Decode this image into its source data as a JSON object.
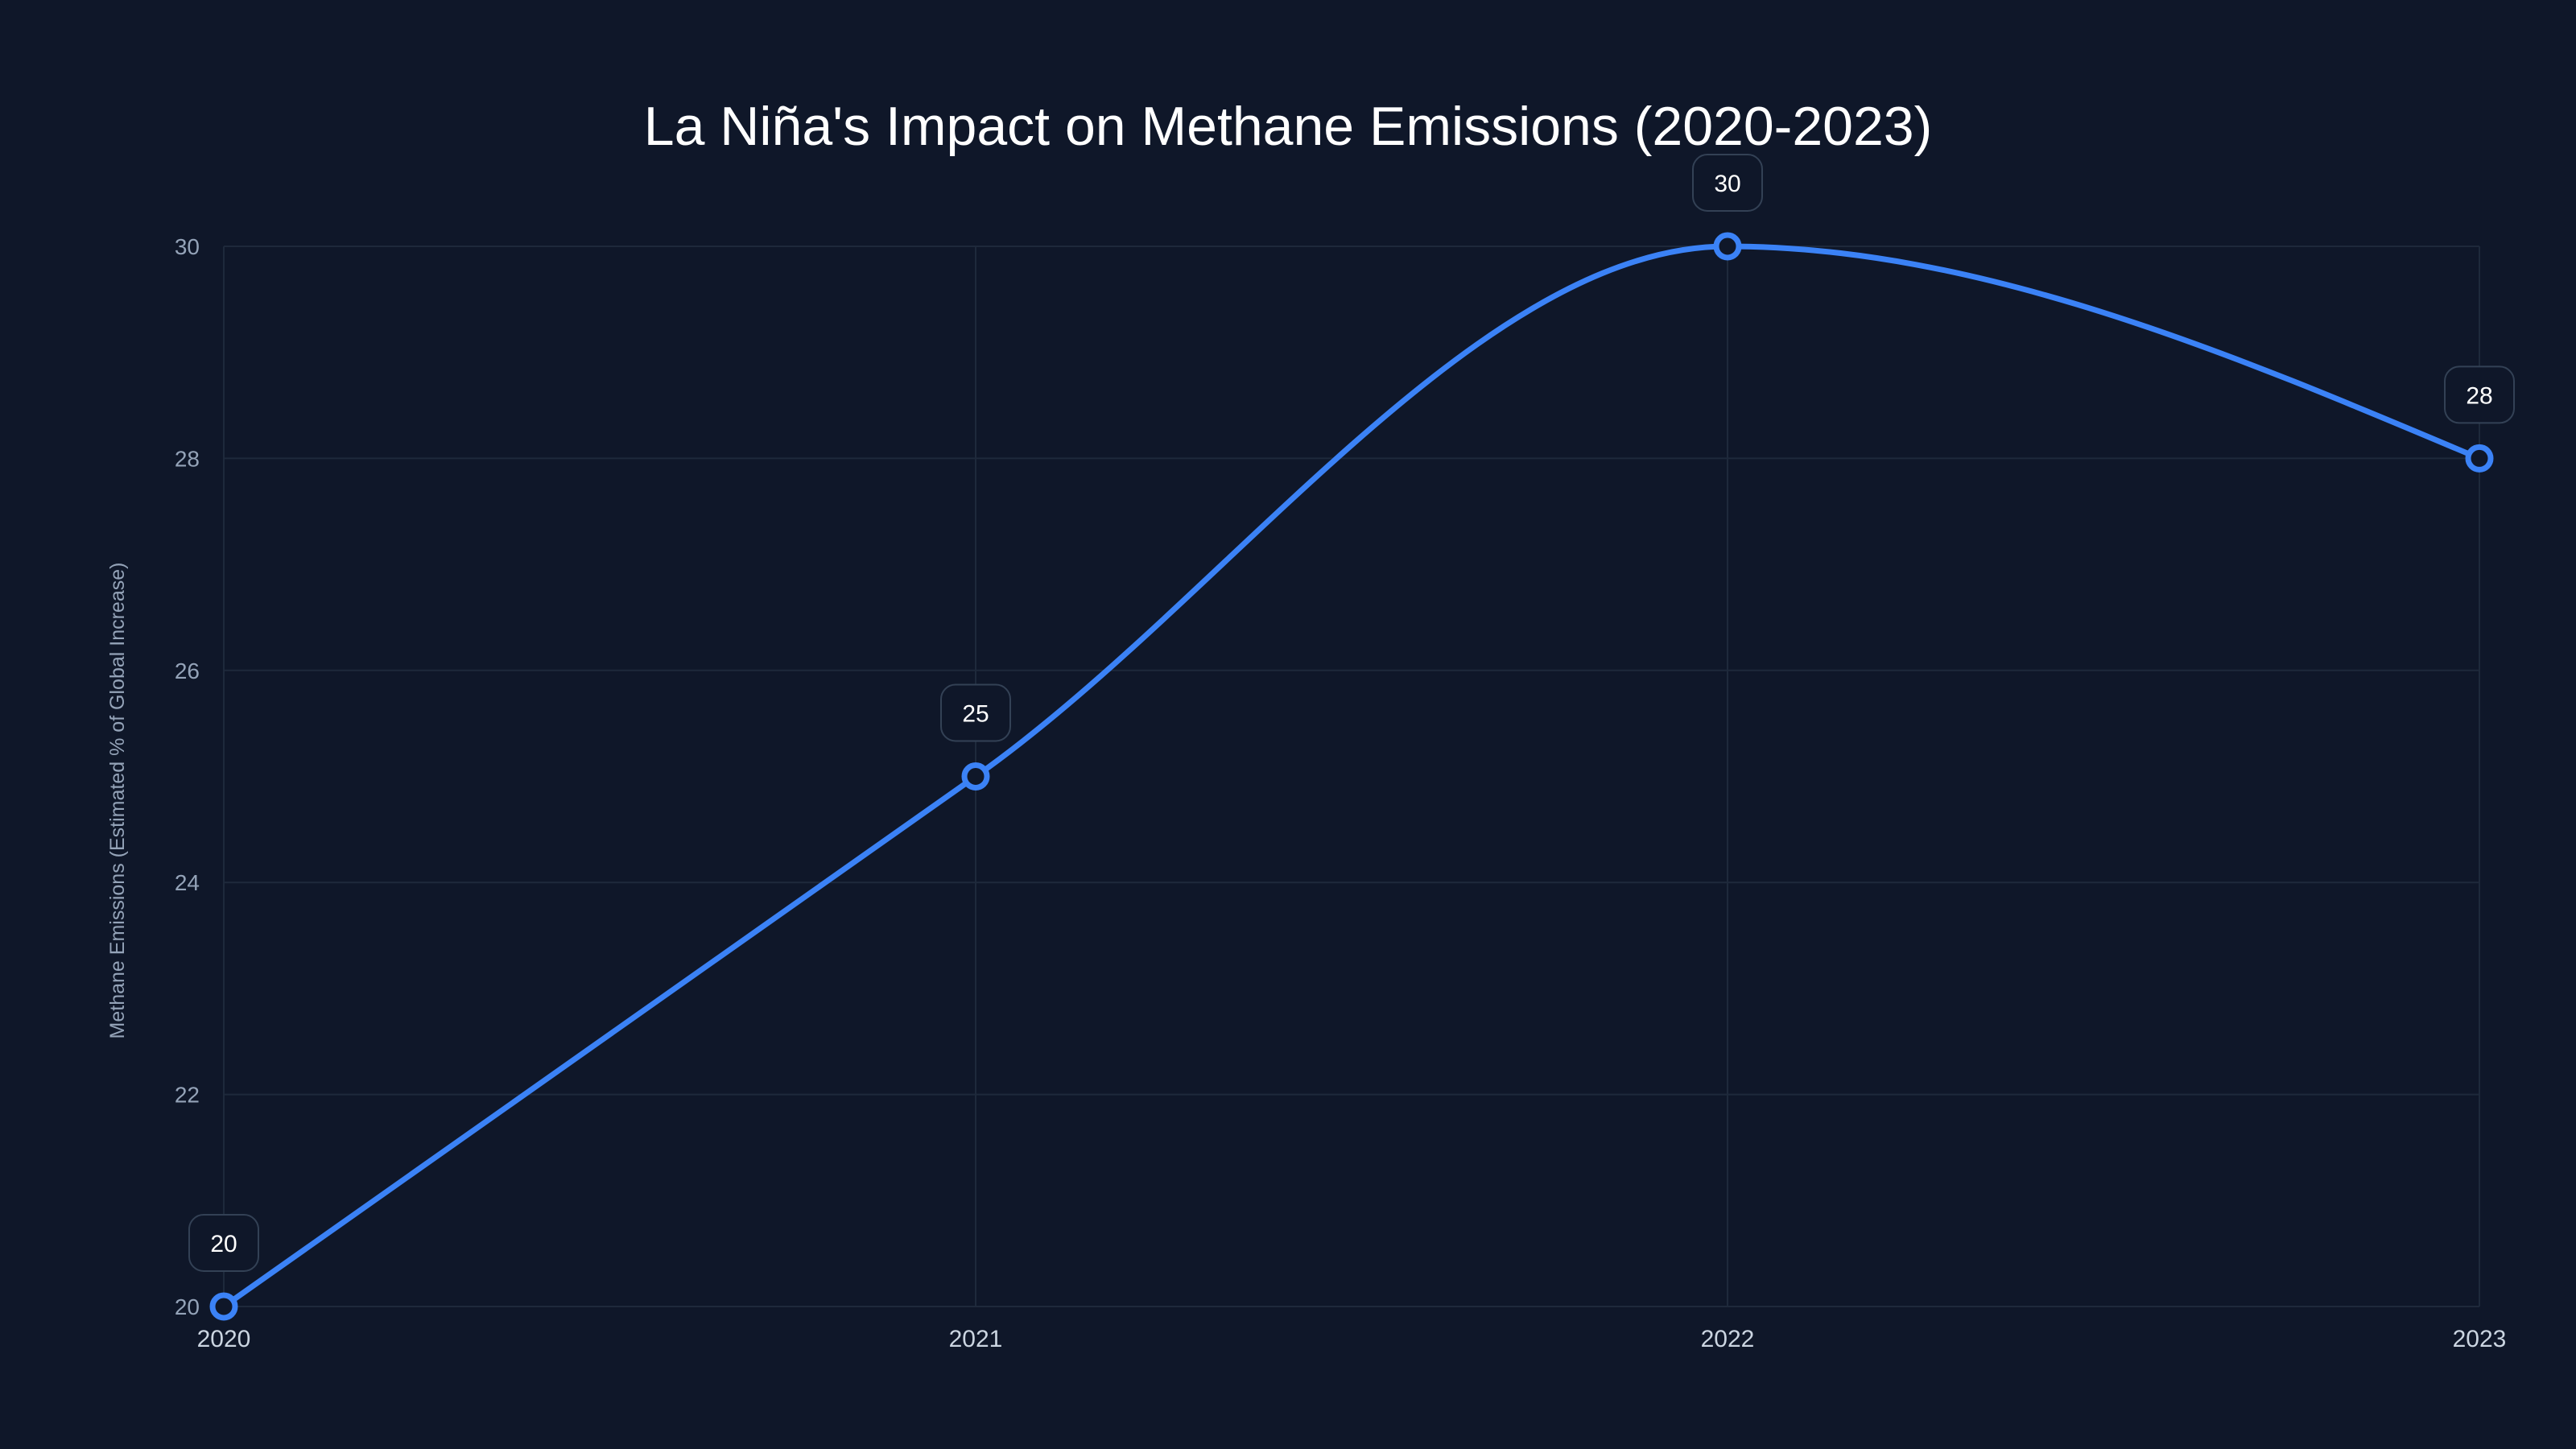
{
  "chart_data": {
    "type": "line",
    "title": "La Niña's Impact on Methane Emissions (2020-2023)",
    "xlabel": "",
    "ylabel": "Methane Emissions (Estimated % of Global Increase)",
    "categories": [
      "2020",
      "2021",
      "2022",
      "2023"
    ],
    "values": [
      20,
      25,
      30,
      28
    ],
    "data_labels": [
      "20",
      "25",
      "30",
      "28"
    ],
    "ylim": [
      20,
      30
    ],
    "yticks": [
      "20",
      "22",
      "24",
      "26",
      "28",
      "30"
    ],
    "grid": true,
    "curve": "smooth",
    "colors": {
      "background": "#0f1729",
      "line": "#3b82f6",
      "grid": "#1e293b"
    }
  }
}
